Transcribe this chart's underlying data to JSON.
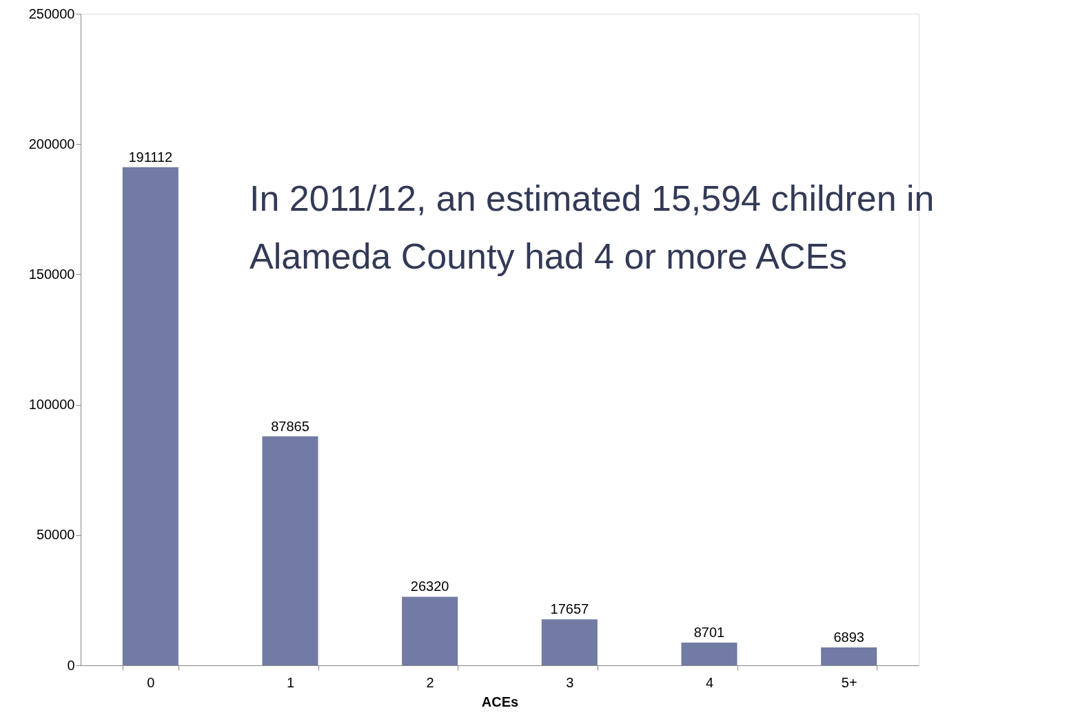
{
  "chart_data": {
    "type": "bar",
    "xlabel": "ACEs",
    "categories": [
      "0",
      "1",
      "2",
      "3",
      "4",
      "5+"
    ],
    "values": [
      191112,
      87865,
      26320,
      17657,
      8701,
      6893
    ],
    "color": "#717ba3",
    "data_labels": true,
    "ylim": [
      0,
      250000
    ],
    "yticks": [
      0,
      50000,
      100000,
      150000,
      200000,
      250000
    ],
    "grid": false,
    "annotations": [
      "In 2011/12, an estimated 15,594 children in Alameda County had 4 or more ACEs"
    ]
  }
}
